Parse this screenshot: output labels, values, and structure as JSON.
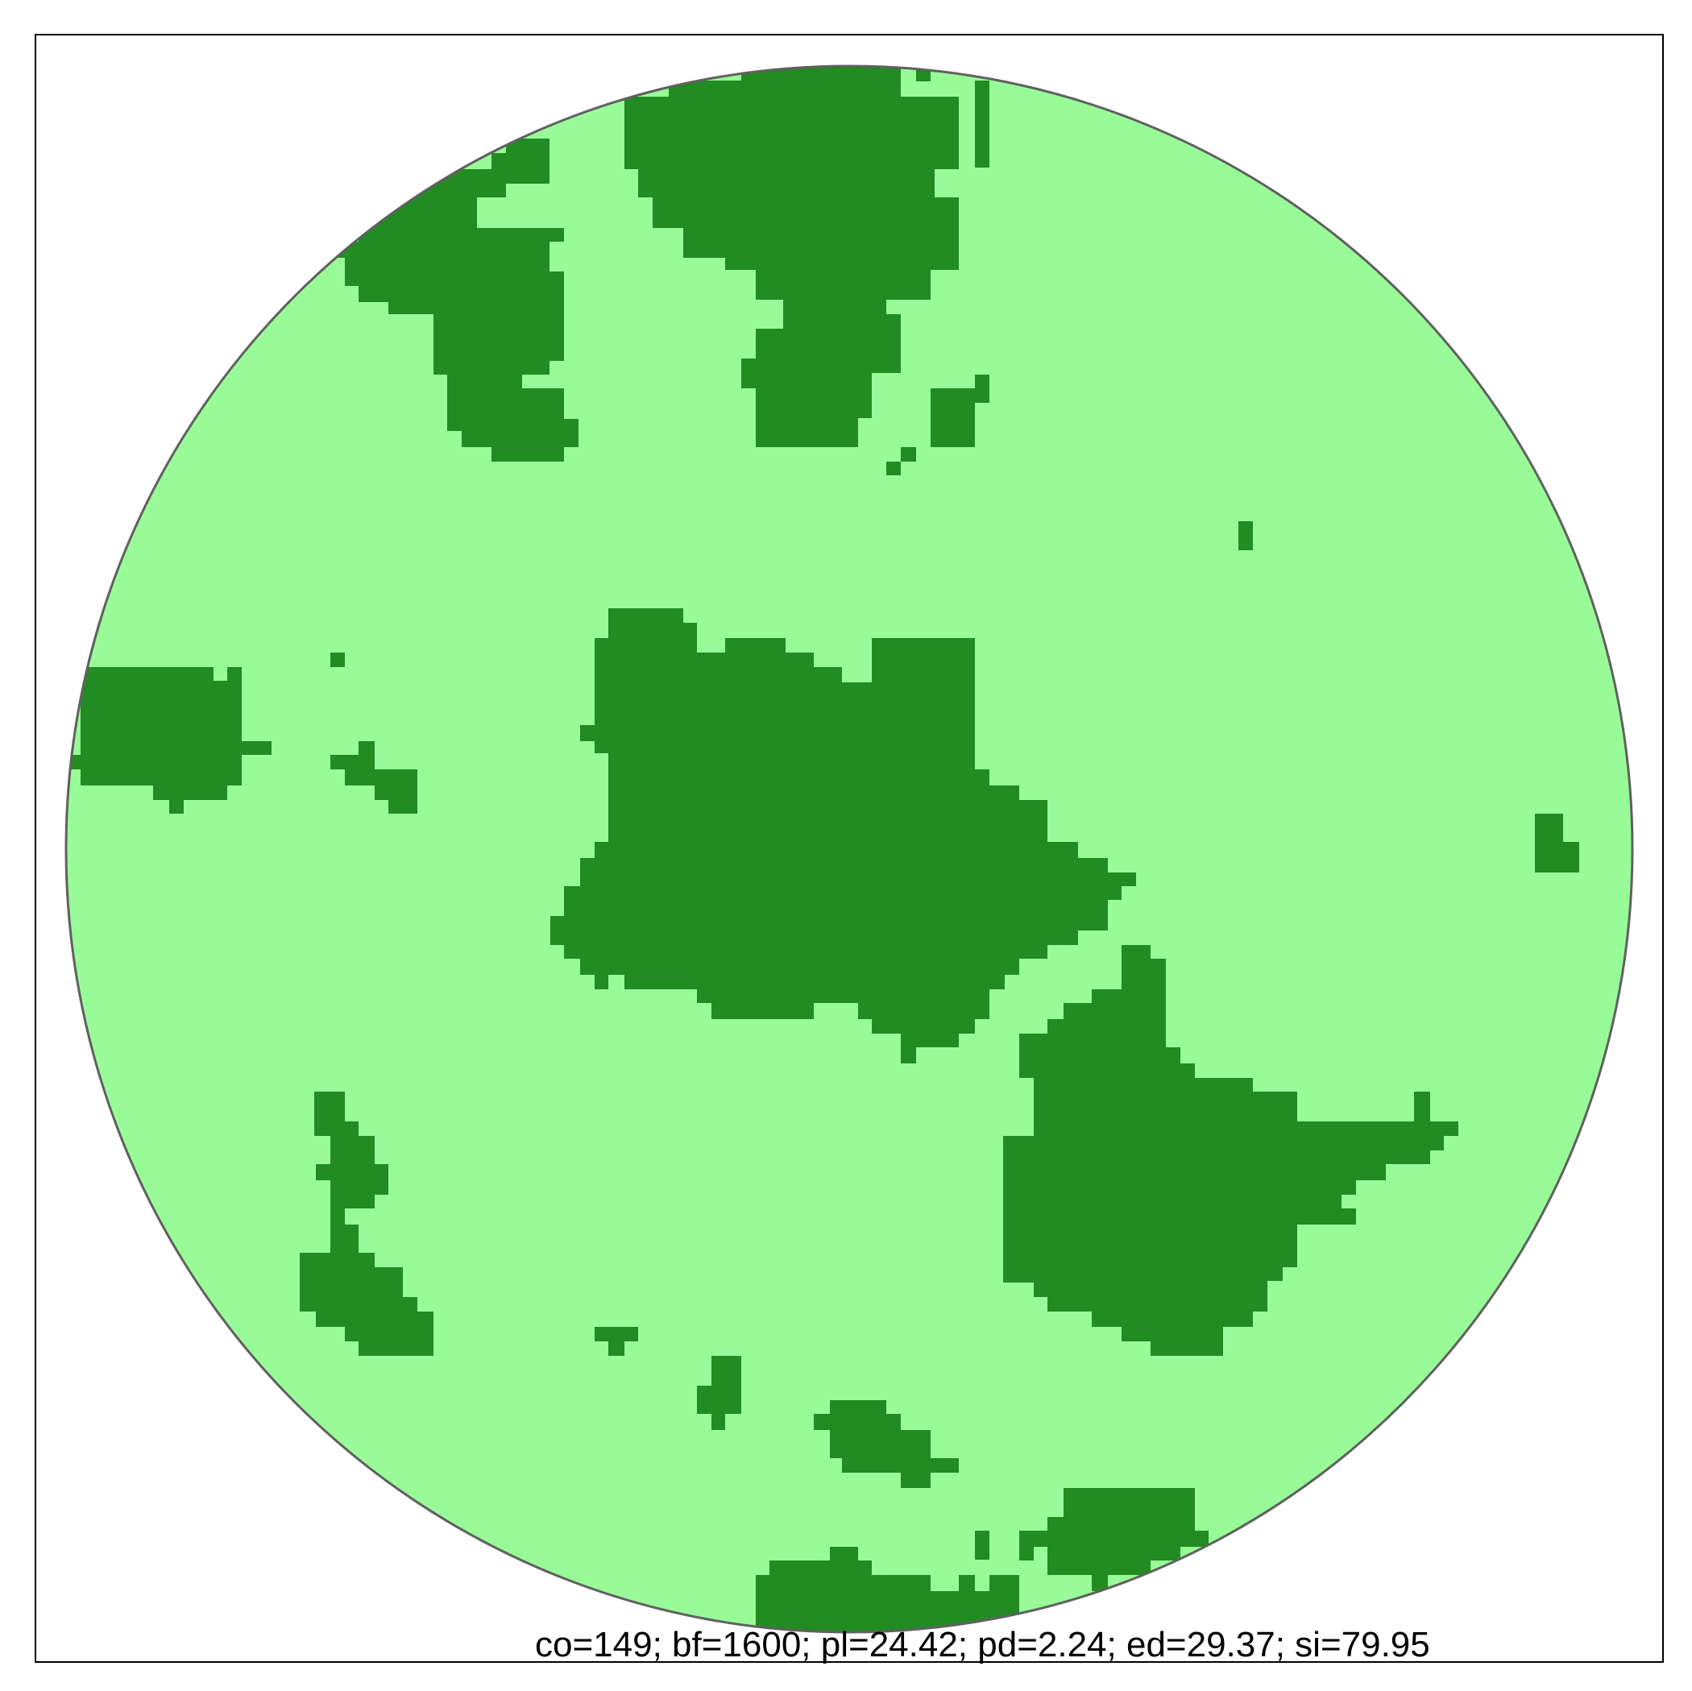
{
  "colors": {
    "background": "#ffffff",
    "frame": "#000000",
    "habitat_light": "#98fb98",
    "habitat_dark": "#228b22",
    "circle_outline": "#606060"
  },
  "caption": {
    "text": "co=149; bf=1600; pl=24.42; pd=2.24; ed=29.37; si=79.95"
  }
}
